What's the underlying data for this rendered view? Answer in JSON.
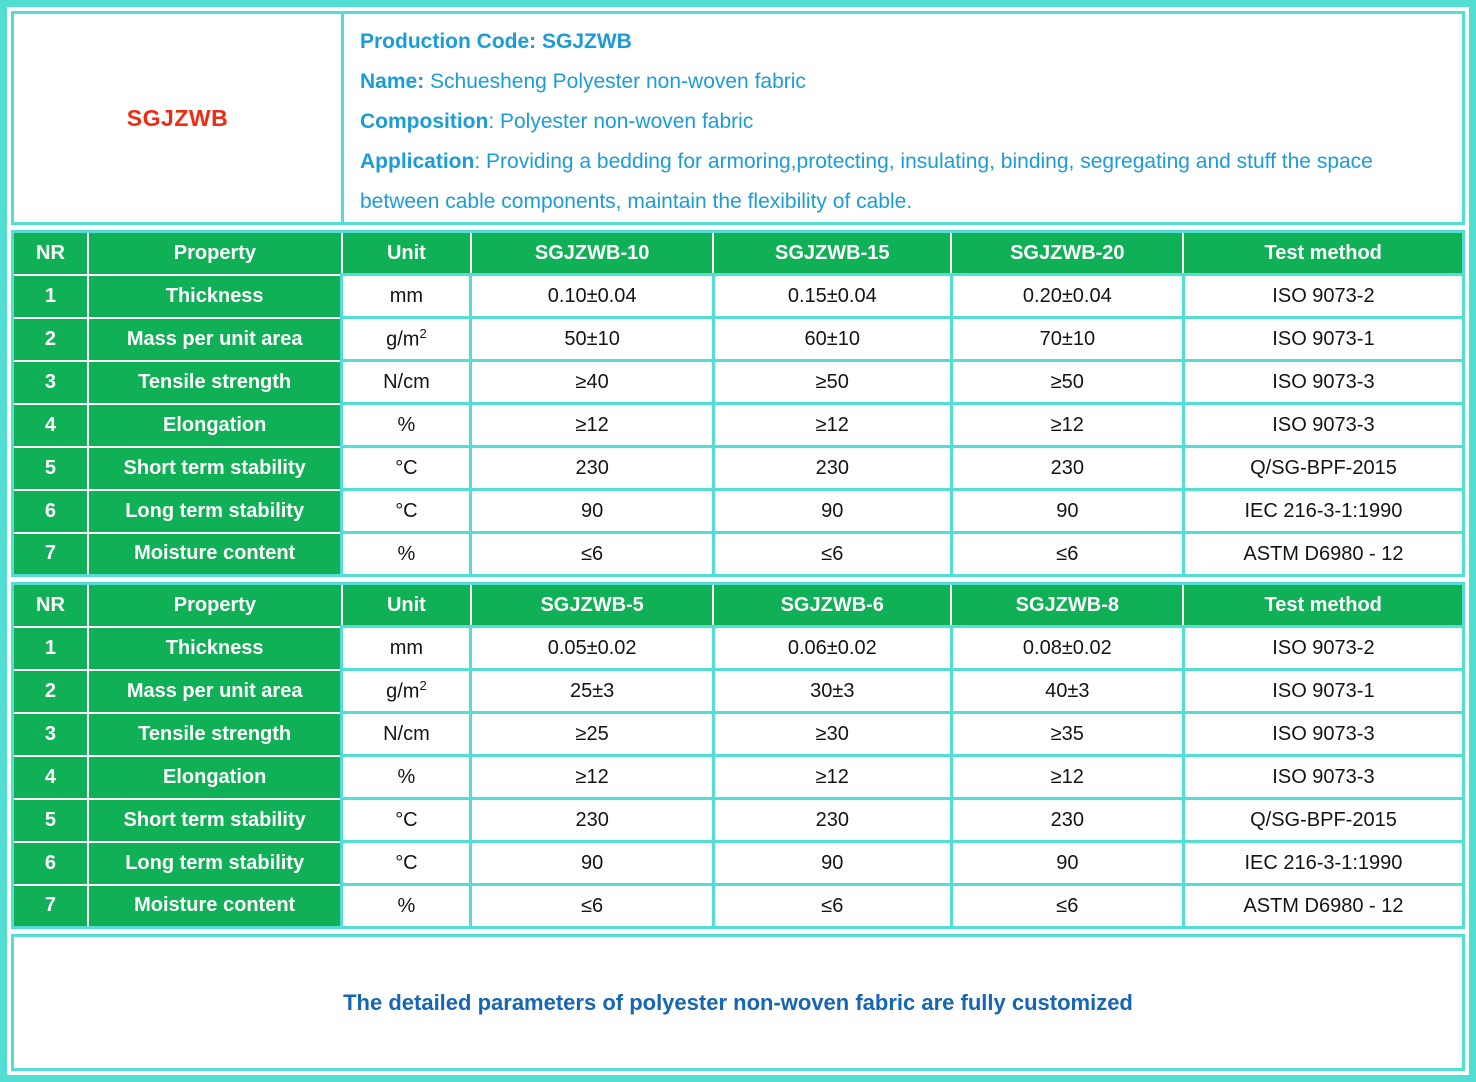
{
  "colors": {
    "border_cyan": "#52DED2",
    "header_green": "#10B156",
    "info_blue": "#1B9CD9",
    "footer_blue": "#1666B3",
    "code_red": "#EE2C12"
  },
  "header": {
    "code": "SGJZWB",
    "lines": [
      {
        "bold": "Production Code: SGJZWB",
        "text": ""
      },
      {
        "bold": "Name:",
        "text": " Schuesheng Polyester non-woven fabric"
      },
      {
        "bold": "Composition",
        "text": ": Polyester non-woven fabric"
      },
      {
        "bold": "Application",
        "text": ": Providing a bedding for armoring,protecting, insulating, binding, segregating and stuff the space between cable components, maintain the flexibility of cable."
      }
    ]
  },
  "tables": [
    {
      "headers": [
        "NR",
        "Property",
        "Unit",
        "SGJZWB-10",
        "SGJZWB-15",
        "SGJZWB-20",
        "Test method"
      ],
      "rows": [
        [
          "1",
          "Thickness",
          "mm",
          "0.10±0.04",
          "0.15±0.04",
          "0.20±0.04",
          "ISO 9073-2"
        ],
        [
          "2",
          "Mass per unit area",
          "g/m²",
          "50±10",
          "60±10",
          "70±10",
          "ISO 9073-1"
        ],
        [
          "3",
          "Tensile strength",
          "N/cm",
          "≥40",
          "≥50",
          "≥50",
          "ISO 9073-3"
        ],
        [
          "4",
          "Elongation",
          "%",
          "≥12",
          "≥12",
          "≥12",
          "ISO 9073-3"
        ],
        [
          "5",
          "Short term stability",
          "°C",
          "230",
          "230",
          "230",
          "Q/SG-BPF-2015"
        ],
        [
          "6",
          "Long term stability",
          "°C",
          "90",
          "90",
          "90",
          "IEC 216-3-1:1990"
        ],
        [
          "7",
          "Moisture content",
          "%",
          "≤6",
          "≤6",
          "≤6",
          "ASTM D6980 - 12"
        ]
      ]
    },
    {
      "headers": [
        "NR",
        "Property",
        "Unit",
        "SGJZWB-5",
        "SGJZWB-6",
        "SGJZWB-8",
        "Test method"
      ],
      "rows": [
        [
          "1",
          "Thickness",
          "mm",
          "0.05±0.02",
          "0.06±0.02",
          "0.08±0.02",
          "ISO 9073-2"
        ],
        [
          "2",
          "Mass per unit area",
          "g/m²",
          "25±3",
          "30±3",
          "40±3",
          "ISO 9073-1"
        ],
        [
          "3",
          "Tensile strength",
          "N/cm",
          "≥25",
          "≥30",
          "≥35",
          "ISO 9073-3"
        ],
        [
          "4",
          "Elongation",
          "%",
          "≥12",
          "≥12",
          "≥12",
          "ISO 9073-3"
        ],
        [
          "5",
          "Short term stability",
          "°C",
          "230",
          "230",
          "230",
          "Q/SG-BPF-2015"
        ],
        [
          "6",
          "Long term stability",
          "°C",
          "90",
          "90",
          "90",
          "IEC 216-3-1:1990"
        ],
        [
          "7",
          "Moisture content",
          "%",
          "≤6",
          "≤6",
          "≤6",
          "ASTM D6980 - 12"
        ]
      ]
    }
  ],
  "footer": {
    "note": "The detailed parameters of polyester non-woven fabric are fully customized"
  }
}
